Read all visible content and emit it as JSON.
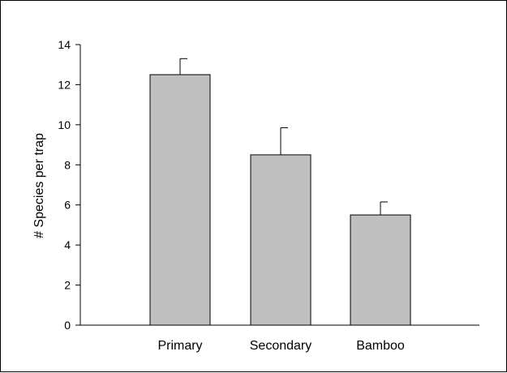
{
  "chart_data": {
    "type": "bar",
    "title": "",
    "xlabel": "",
    "ylabel": "# Species per trap",
    "categories": [
      "Primary",
      "Secondary",
      "Bamboo"
    ],
    "values": [
      12.5,
      8.5,
      5.5
    ],
    "error_plus": [
      0.8,
      1.35,
      0.65
    ],
    "ylim": [
      0,
      14
    ],
    "yticks": [
      0,
      2,
      4,
      6,
      8,
      10,
      12,
      14
    ],
    "grid": false,
    "bar_color": "#c0c0c0",
    "edge_color": "#000000"
  }
}
